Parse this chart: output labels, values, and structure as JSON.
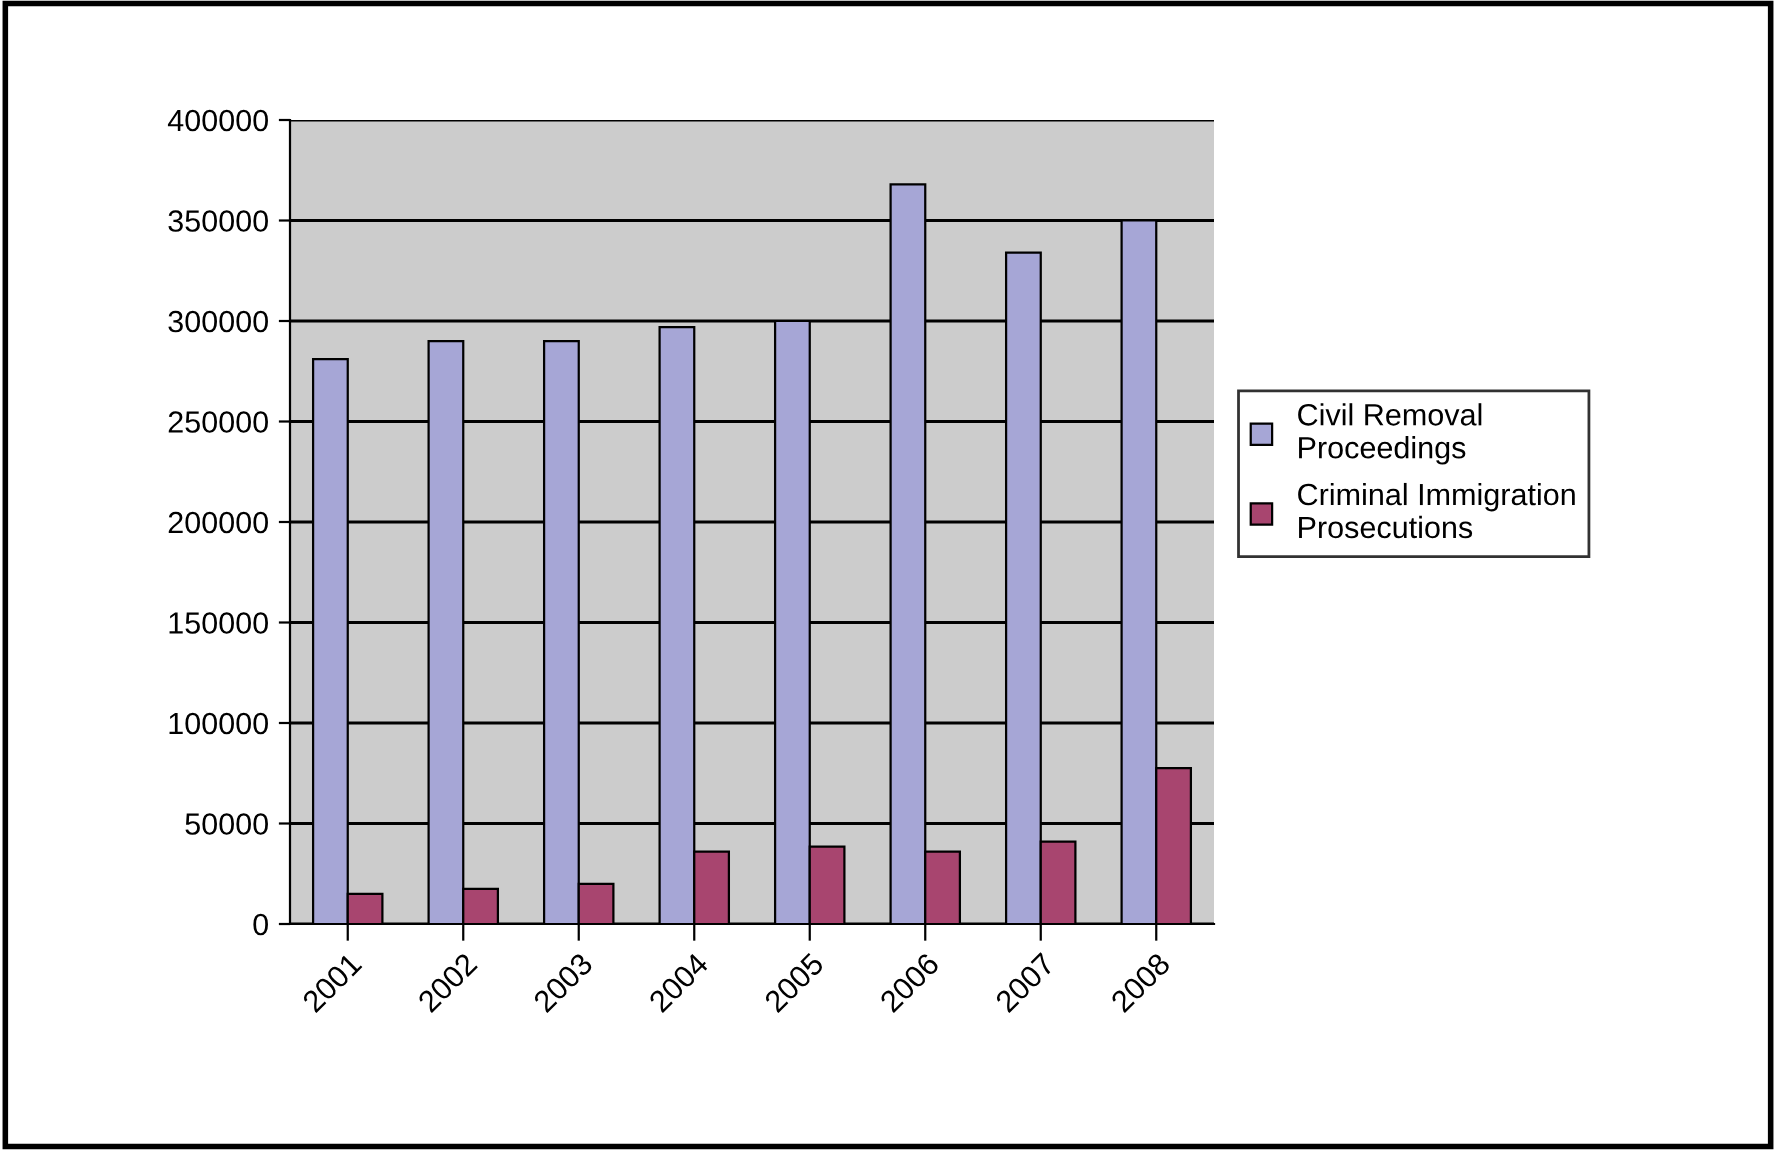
{
  "chart_data": {
    "type": "bar",
    "categories": [
      "2001",
      "2002",
      "2003",
      "2004",
      "2005",
      "2006",
      "2007",
      "2008"
    ],
    "series": [
      {
        "name": "Civil Removal Proceedings",
        "color": "#a6a6d6",
        "values": [
          281000,
          290000,
          290000,
          297000,
          300000,
          368000,
          334000,
          350000
        ]
      },
      {
        "name": "Criminal Immigration Prosecutions",
        "color": "#a8456f",
        "values": [
          15000,
          17500,
          20000,
          36000,
          38500,
          36000,
          41000,
          77500
        ]
      }
    ],
    "ylim": [
      0,
      400000
    ],
    "yticks": [
      0,
      50000,
      100000,
      150000,
      200000,
      250000,
      300000,
      350000,
      400000
    ],
    "grid": "y",
    "legend": "right"
  }
}
